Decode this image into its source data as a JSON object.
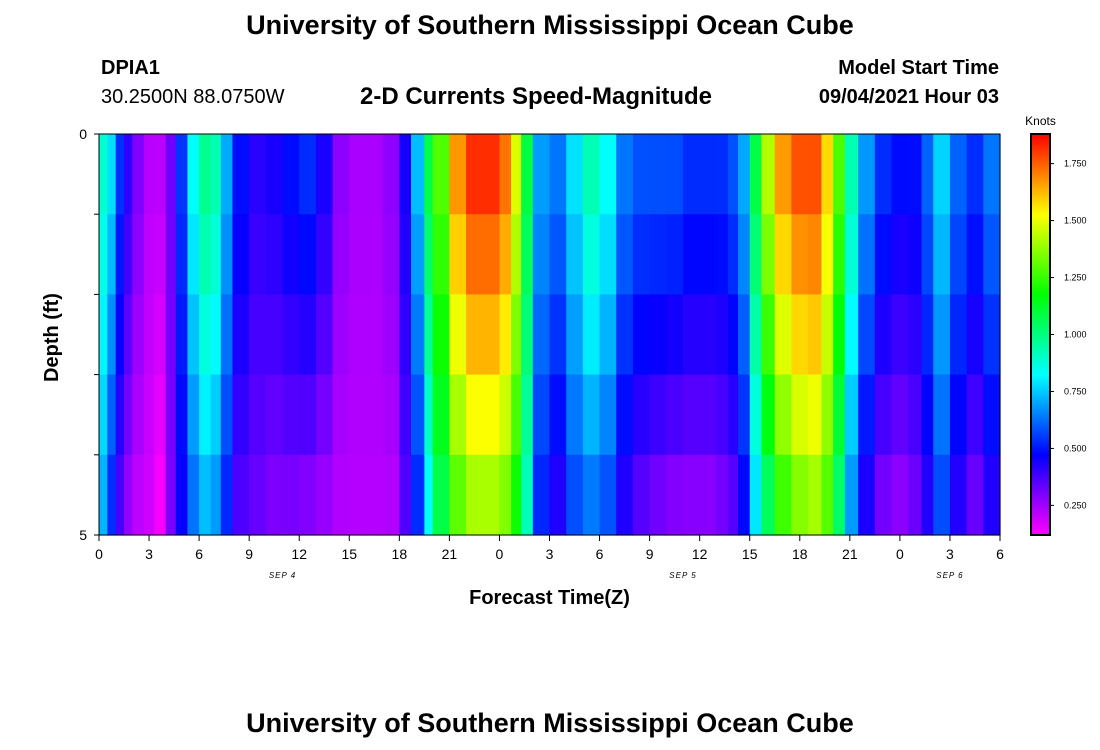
{
  "page": {
    "title_top": "University of Southern Mississippi Ocean Cube",
    "title_bottom": "University of Southern Mississippi Ocean Cube",
    "station_id": "DPIA1",
    "station_coords": "30.2500N  88.0750W",
    "plot_title": "2-D Currents Speed-Magnitude",
    "model_start_label": "Model Start Time",
    "model_start_value": "09/04/2021 Hour 03"
  },
  "colors": {
    "colormap": [
      "#ff00ff",
      "#8000ff",
      "#0000ff",
      "#0080ff",
      "#00ffff",
      "#00ff80",
      "#00ff00",
      "#80ff00",
      "#ffff00",
      "#ff8000",
      "#ff0000"
    ],
    "background": "#ffffff"
  },
  "chart_data": {
    "type": "heatmap",
    "title": "2-D Currents Speed-Magnitude",
    "xlabel": "Forecast Time(Z)",
    "ylabel": "Depth (ft)",
    "colorbar_label": "Knots",
    "x_ticks": [
      "0",
      "3",
      "6",
      "9",
      "12",
      "15",
      "18",
      "21",
      "0",
      "3",
      "6",
      "9",
      "12",
      "15",
      "18",
      "21",
      "0",
      "3",
      "6"
    ],
    "date_labels": [
      {
        "label": "SEP 4",
        "hour": 11
      },
      {
        "label": "SEP 5",
        "hour": 35
      },
      {
        "label": "SEP 6",
        "hour": 51
      }
    ],
    "y_ticks": [
      "0",
      "5"
    ],
    "y_range": [
      0,
      5
    ],
    "x_range_hours": [
      0,
      54
    ],
    "colorbar_ticks": [
      "1.750",
      "1.500",
      "1.250",
      "1.000",
      "0.750",
      "0.500",
      "0.250"
    ],
    "color_range": [
      0.12,
      1.88
    ],
    "depth_layers": [
      0,
      1,
      2,
      3,
      4,
      5
    ],
    "profile": [
      {
        "hour": 0,
        "surface": 0.9,
        "bottom": 0.7
      },
      {
        "hour": 0.5,
        "surface": 0.8,
        "bottom": 0.5
      },
      {
        "hour": 1,
        "surface": 0.55,
        "bottom": 0.35
      },
      {
        "hour": 1.5,
        "surface": 0.42,
        "bottom": 0.25
      },
      {
        "hour": 2,
        "surface": 0.3,
        "bottom": 0.2
      },
      {
        "hour": 2.7,
        "surface": 0.22,
        "bottom": 0.18
      },
      {
        "hour": 3.3,
        "surface": 0.22,
        "bottom": 0.12
      },
      {
        "hour": 4,
        "surface": 0.32,
        "bottom": 0.3
      },
      {
        "hour": 4.6,
        "surface": 0.55,
        "bottom": 0.45
      },
      {
        "hour": 5.3,
        "surface": 0.85,
        "bottom": 0.6
      },
      {
        "hour": 6,
        "surface": 1.0,
        "bottom": 0.7
      },
      {
        "hour": 6.7,
        "surface": 0.95,
        "bottom": 0.65
      },
      {
        "hour": 7.3,
        "surface": 0.72,
        "bottom": 0.5
      },
      {
        "hour": 8,
        "surface": 0.5,
        "bottom": 0.35
      },
      {
        "hour": 9,
        "surface": 0.42,
        "bottom": 0.32
      },
      {
        "hour": 10,
        "surface": 0.45,
        "bottom": 0.28
      },
      {
        "hour": 11,
        "surface": 0.5,
        "bottom": 0.28
      },
      {
        "hour": 12,
        "surface": 0.55,
        "bottom": 0.26
      },
      {
        "hour": 13,
        "surface": 0.45,
        "bottom": 0.24
      },
      {
        "hour": 14,
        "surface": 0.28,
        "bottom": 0.22
      },
      {
        "hour": 15,
        "surface": 0.24,
        "bottom": 0.22
      },
      {
        "hour": 16,
        "surface": 0.24,
        "bottom": 0.22
      },
      {
        "hour": 17,
        "surface": 0.28,
        "bottom": 0.22
      },
      {
        "hour": 18,
        "surface": 0.45,
        "bottom": 0.35
      },
      {
        "hour": 18.7,
        "surface": 0.75,
        "bottom": 0.5
      },
      {
        "hour": 19.5,
        "surface": 1.1,
        "bottom": 0.8
      },
      {
        "hour": 20,
        "surface": 1.3,
        "bottom": 1.05
      },
      {
        "hour": 21,
        "surface": 1.7,
        "bottom": 1.25
      },
      {
        "hour": 22,
        "surface": 1.85,
        "bottom": 1.35
      },
      {
        "hour": 23,
        "surface": 1.85,
        "bottom": 1.35
      },
      {
        "hour": 24,
        "surface": 1.75,
        "bottom": 1.3
      },
      {
        "hour": 24.7,
        "surface": 1.5,
        "bottom": 1.15
      },
      {
        "hour": 25.3,
        "surface": 1.1,
        "bottom": 0.9
      },
      {
        "hour": 26,
        "surface": 0.7,
        "bottom": 0.5
      },
      {
        "hour": 27,
        "surface": 0.65,
        "bottom": 0.4
      },
      {
        "hour": 28,
        "surface": 0.8,
        "bottom": 0.55
      },
      {
        "hour": 29,
        "surface": 0.95,
        "bottom": 0.6
      },
      {
        "hour": 30,
        "surface": 0.85,
        "bottom": 0.55
      },
      {
        "hour": 31,
        "surface": 0.65,
        "bottom": 0.4
      },
      {
        "hour": 32,
        "surface": 0.6,
        "bottom": 0.32
      },
      {
        "hour": 33,
        "surface": 0.6,
        "bottom": 0.28
      },
      {
        "hour": 34,
        "surface": 0.6,
        "bottom": 0.25
      },
      {
        "hour": 35,
        "surface": 0.55,
        "bottom": 0.25
      },
      {
        "hour": 36,
        "surface": 0.55,
        "bottom": 0.25
      },
      {
        "hour": 37,
        "surface": 0.55,
        "bottom": 0.28
      },
      {
        "hour": 37.7,
        "surface": 0.6,
        "bottom": 0.32
      },
      {
        "hour": 38.3,
        "surface": 0.72,
        "bottom": 0.45
      },
      {
        "hour": 39,
        "surface": 1.1,
        "bottom": 0.75
      },
      {
        "hour": 39.7,
        "surface": 1.45,
        "bottom": 1.0
      },
      {
        "hour": 40.5,
        "surface": 1.7,
        "bottom": 1.2
      },
      {
        "hour": 41.5,
        "surface": 1.8,
        "bottom": 1.3
      },
      {
        "hour": 42.5,
        "surface": 1.8,
        "bottom": 1.35
      },
      {
        "hour": 43.3,
        "surface": 1.6,
        "bottom": 1.25
      },
      {
        "hour": 44,
        "surface": 1.3,
        "bottom": 1.0
      },
      {
        "hour": 44.7,
        "surface": 0.95,
        "bottom": 0.65
      },
      {
        "hour": 45.5,
        "surface": 0.7,
        "bottom": 0.4
      },
      {
        "hour": 46.5,
        "surface": 0.55,
        "bottom": 0.28
      },
      {
        "hour": 47.5,
        "surface": 0.5,
        "bottom": 0.25
      },
      {
        "hour": 48.5,
        "surface": 0.5,
        "bottom": 0.3
      },
      {
        "hour": 49.3,
        "surface": 0.62,
        "bottom": 0.4
      },
      {
        "hour": 50,
        "surface": 0.78,
        "bottom": 0.55
      },
      {
        "hour": 51,
        "surface": 0.62,
        "bottom": 0.4
      },
      {
        "hour": 52,
        "surface": 0.55,
        "bottom": 0.3
      },
      {
        "hour": 53,
        "surface": 0.65,
        "bottom": 0.4
      },
      {
        "hour": 54,
        "surface": 0.85,
        "bottom": 0.55
      }
    ]
  }
}
